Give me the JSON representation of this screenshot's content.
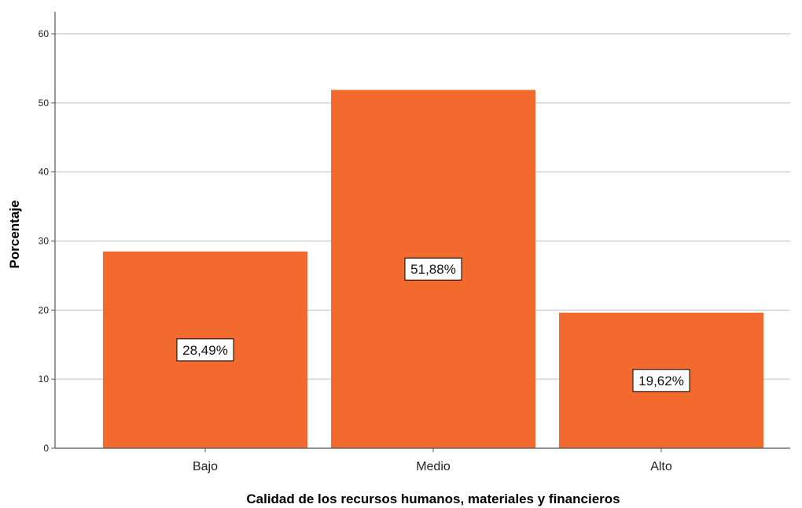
{
  "chart_data": {
    "type": "bar",
    "categories": [
      "Bajo",
      "Medio",
      "Alto"
    ],
    "values": [
      28.49,
      51.88,
      19.62
    ],
    "data_labels": [
      "28,49%",
      "51,88%",
      "19,62%"
    ],
    "xlabel": "Calidad de los recursos humanos, materiales y financieros",
    "ylabel": "Porcentaje",
    "ylim": [
      0,
      60
    ],
    "yticks": [
      0,
      10,
      20,
      30,
      40,
      50,
      60
    ],
    "grid": true,
    "bar_color": "#F26A2E",
    "gridline_color": "#C8C8C8",
    "axis_color": "#555555"
  }
}
